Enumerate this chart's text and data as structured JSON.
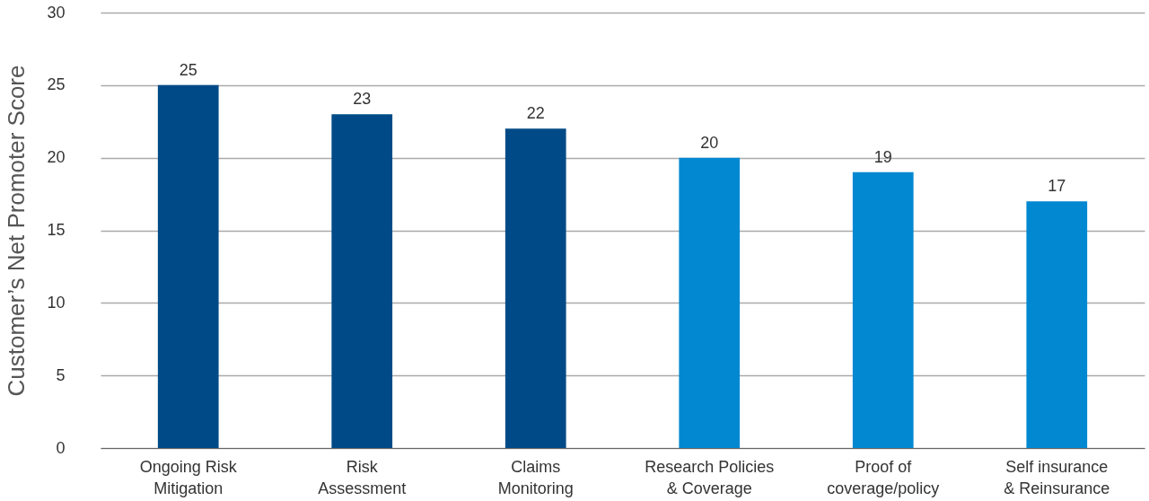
{
  "chart_data": {
    "type": "bar",
    "ylabel": "Customer’s Net Promoter Score",
    "categories": [
      "Ongoing Risk\nMitigation",
      "Risk\nAssessment",
      "Claims\nMonitoring",
      "Research Policies\n& Coverage",
      "Proof of\ncoverage/policy",
      "Self insurance\n& Reinsurance"
    ],
    "values": [
      25,
      23,
      22,
      20,
      19,
      17
    ],
    "colors": [
      "#004b87",
      "#004b87",
      "#004b87",
      "#0288d1",
      "#0288d1",
      "#0288d1"
    ],
    "ylim": [
      0,
      30
    ],
    "yticks": [
      0,
      5,
      10,
      15,
      20,
      25,
      30
    ],
    "grid": "y",
    "data_labels": true,
    "legend": false
  }
}
